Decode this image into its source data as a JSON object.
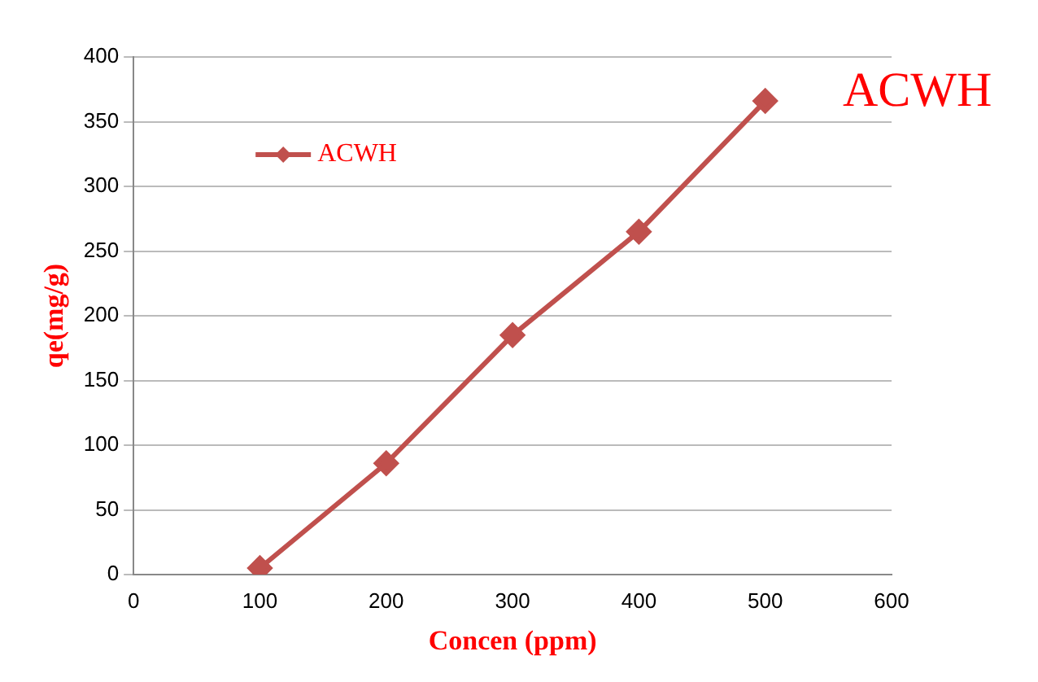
{
  "chart_data": {
    "type": "line",
    "title": "ACWH",
    "xlabel": "Concen (ppm)",
    "ylabel": "qe(mg/g)",
    "x": [
      100,
      200,
      300,
      400,
      500
    ],
    "series": [
      {
        "name": "ACWH",
        "color": "#c0504d",
        "values": [
          5,
          86,
          185,
          265,
          366
        ]
      }
    ],
    "xlim": [
      0,
      600
    ],
    "xticks": [
      0,
      100,
      200,
      300,
      400,
      500,
      600
    ],
    "ylim": [
      0,
      400
    ],
    "yticks": [
      0,
      50,
      100,
      150,
      200,
      250,
      300,
      350,
      400
    ],
    "grid": "y",
    "legend": "top left",
    "marker": "diamond",
    "line_style": "solid"
  }
}
